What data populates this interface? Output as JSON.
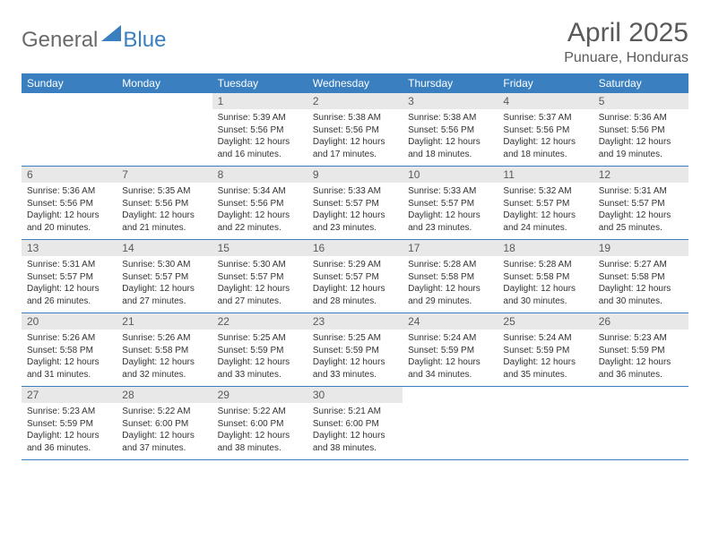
{
  "brand": {
    "part1": "General",
    "part2": "Blue"
  },
  "header": {
    "title": "April 2025",
    "location": "Punuare, Honduras"
  },
  "style": {
    "accent": "#3a7fc0",
    "header_bg": "#3a7fc0",
    "header_text": "#ffffff",
    "daynum_bg": "#e8e8e8",
    "daynum_text": "#5a5a5a",
    "body_text": "#333333",
    "title_color": "#5a5a5a",
    "brand_gray": "#6a6a6a",
    "page_bg": "#ffffff",
    "title_fontsize": 30,
    "loc_fontsize": 16,
    "th_fontsize": 12,
    "cell_fontsize": 10
  },
  "dayNames": [
    "Sunday",
    "Monday",
    "Tuesday",
    "Wednesday",
    "Thursday",
    "Friday",
    "Saturday"
  ],
  "weeks": [
    [
      {
        "n": "",
        "sr": "",
        "ss": "",
        "dl": "",
        "empty": true
      },
      {
        "n": "",
        "sr": "",
        "ss": "",
        "dl": "",
        "empty": true
      },
      {
        "n": "1",
        "sr": "Sunrise: 5:39 AM",
        "ss": "Sunset: 5:56 PM",
        "dl": "Daylight: 12 hours and 16 minutes."
      },
      {
        "n": "2",
        "sr": "Sunrise: 5:38 AM",
        "ss": "Sunset: 5:56 PM",
        "dl": "Daylight: 12 hours and 17 minutes."
      },
      {
        "n": "3",
        "sr": "Sunrise: 5:38 AM",
        "ss": "Sunset: 5:56 PM",
        "dl": "Daylight: 12 hours and 18 minutes."
      },
      {
        "n": "4",
        "sr": "Sunrise: 5:37 AM",
        "ss": "Sunset: 5:56 PM",
        "dl": "Daylight: 12 hours and 18 minutes."
      },
      {
        "n": "5",
        "sr": "Sunrise: 5:36 AM",
        "ss": "Sunset: 5:56 PM",
        "dl": "Daylight: 12 hours and 19 minutes."
      }
    ],
    [
      {
        "n": "6",
        "sr": "Sunrise: 5:36 AM",
        "ss": "Sunset: 5:56 PM",
        "dl": "Daylight: 12 hours and 20 minutes."
      },
      {
        "n": "7",
        "sr": "Sunrise: 5:35 AM",
        "ss": "Sunset: 5:56 PM",
        "dl": "Daylight: 12 hours and 21 minutes."
      },
      {
        "n": "8",
        "sr": "Sunrise: 5:34 AM",
        "ss": "Sunset: 5:56 PM",
        "dl": "Daylight: 12 hours and 22 minutes."
      },
      {
        "n": "9",
        "sr": "Sunrise: 5:33 AM",
        "ss": "Sunset: 5:57 PM",
        "dl": "Daylight: 12 hours and 23 minutes."
      },
      {
        "n": "10",
        "sr": "Sunrise: 5:33 AM",
        "ss": "Sunset: 5:57 PM",
        "dl": "Daylight: 12 hours and 23 minutes."
      },
      {
        "n": "11",
        "sr": "Sunrise: 5:32 AM",
        "ss": "Sunset: 5:57 PM",
        "dl": "Daylight: 12 hours and 24 minutes."
      },
      {
        "n": "12",
        "sr": "Sunrise: 5:31 AM",
        "ss": "Sunset: 5:57 PM",
        "dl": "Daylight: 12 hours and 25 minutes."
      }
    ],
    [
      {
        "n": "13",
        "sr": "Sunrise: 5:31 AM",
        "ss": "Sunset: 5:57 PM",
        "dl": "Daylight: 12 hours and 26 minutes."
      },
      {
        "n": "14",
        "sr": "Sunrise: 5:30 AM",
        "ss": "Sunset: 5:57 PM",
        "dl": "Daylight: 12 hours and 27 minutes."
      },
      {
        "n": "15",
        "sr": "Sunrise: 5:30 AM",
        "ss": "Sunset: 5:57 PM",
        "dl": "Daylight: 12 hours and 27 minutes."
      },
      {
        "n": "16",
        "sr": "Sunrise: 5:29 AM",
        "ss": "Sunset: 5:57 PM",
        "dl": "Daylight: 12 hours and 28 minutes."
      },
      {
        "n": "17",
        "sr": "Sunrise: 5:28 AM",
        "ss": "Sunset: 5:58 PM",
        "dl": "Daylight: 12 hours and 29 minutes."
      },
      {
        "n": "18",
        "sr": "Sunrise: 5:28 AM",
        "ss": "Sunset: 5:58 PM",
        "dl": "Daylight: 12 hours and 30 minutes."
      },
      {
        "n": "19",
        "sr": "Sunrise: 5:27 AM",
        "ss": "Sunset: 5:58 PM",
        "dl": "Daylight: 12 hours and 30 minutes."
      }
    ],
    [
      {
        "n": "20",
        "sr": "Sunrise: 5:26 AM",
        "ss": "Sunset: 5:58 PM",
        "dl": "Daylight: 12 hours and 31 minutes."
      },
      {
        "n": "21",
        "sr": "Sunrise: 5:26 AM",
        "ss": "Sunset: 5:58 PM",
        "dl": "Daylight: 12 hours and 32 minutes."
      },
      {
        "n": "22",
        "sr": "Sunrise: 5:25 AM",
        "ss": "Sunset: 5:59 PM",
        "dl": "Daylight: 12 hours and 33 minutes."
      },
      {
        "n": "23",
        "sr": "Sunrise: 5:25 AM",
        "ss": "Sunset: 5:59 PM",
        "dl": "Daylight: 12 hours and 33 minutes."
      },
      {
        "n": "24",
        "sr": "Sunrise: 5:24 AM",
        "ss": "Sunset: 5:59 PM",
        "dl": "Daylight: 12 hours and 34 minutes."
      },
      {
        "n": "25",
        "sr": "Sunrise: 5:24 AM",
        "ss": "Sunset: 5:59 PM",
        "dl": "Daylight: 12 hours and 35 minutes."
      },
      {
        "n": "26",
        "sr": "Sunrise: 5:23 AM",
        "ss": "Sunset: 5:59 PM",
        "dl": "Daylight: 12 hours and 36 minutes."
      }
    ],
    [
      {
        "n": "27",
        "sr": "Sunrise: 5:23 AM",
        "ss": "Sunset: 5:59 PM",
        "dl": "Daylight: 12 hours and 36 minutes."
      },
      {
        "n": "28",
        "sr": "Sunrise: 5:22 AM",
        "ss": "Sunset: 6:00 PM",
        "dl": "Daylight: 12 hours and 37 minutes."
      },
      {
        "n": "29",
        "sr": "Sunrise: 5:22 AM",
        "ss": "Sunset: 6:00 PM",
        "dl": "Daylight: 12 hours and 38 minutes."
      },
      {
        "n": "30",
        "sr": "Sunrise: 5:21 AM",
        "ss": "Sunset: 6:00 PM",
        "dl": "Daylight: 12 hours and 38 minutes."
      },
      {
        "n": "",
        "sr": "",
        "ss": "",
        "dl": "",
        "empty": true
      },
      {
        "n": "",
        "sr": "",
        "ss": "",
        "dl": "",
        "empty": true
      },
      {
        "n": "",
        "sr": "",
        "ss": "",
        "dl": "",
        "empty": true
      }
    ]
  ]
}
